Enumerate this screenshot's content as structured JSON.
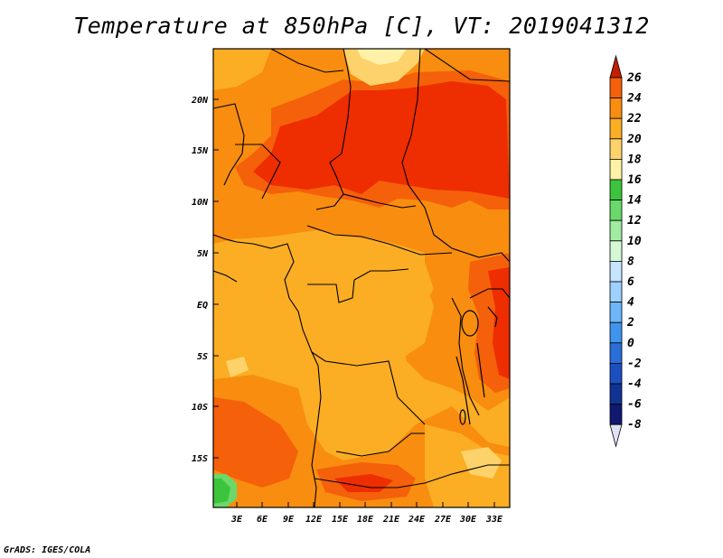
{
  "title": "Temperature at 850hPa [C], VT: 2019041312",
  "credit": "GrADS: IGES/COLA",
  "map": {
    "lat_labels": [
      "20N",
      "15N",
      "10N",
      "5N",
      "EQ",
      "5S",
      "10S",
      "15S"
    ],
    "lon_labels": [
      "3E",
      "6E",
      "9E",
      "12E",
      "15E",
      "18E",
      "21E",
      "24E",
      "27E",
      "30E",
      "33E"
    ],
    "region": "Central Africa"
  },
  "colorbar": {
    "labels": [
      "26",
      "24",
      "22",
      "20",
      "18",
      "16",
      "14",
      "12",
      "10",
      "8",
      "6",
      "4",
      "2",
      "0",
      "-2",
      "-4",
      "-6",
      "-8"
    ],
    "colors": [
      "#ee2d00",
      "#f5600a",
      "#f88d0f",
      "#fbad24",
      "#fdd26a",
      "#fff2a8",
      "#3cc43c",
      "#6ad86a",
      "#a0eca0",
      "#d6f8d6",
      "#c6e4ff",
      "#9fd0ff",
      "#6fb6f8",
      "#3f94ee",
      "#2a6ed8",
      "#1c50c0",
      "#103494",
      "#101870"
    ],
    "top_arrow_color": "#c41e00",
    "bottom_arrow_color": "#e0e0f6"
  }
}
